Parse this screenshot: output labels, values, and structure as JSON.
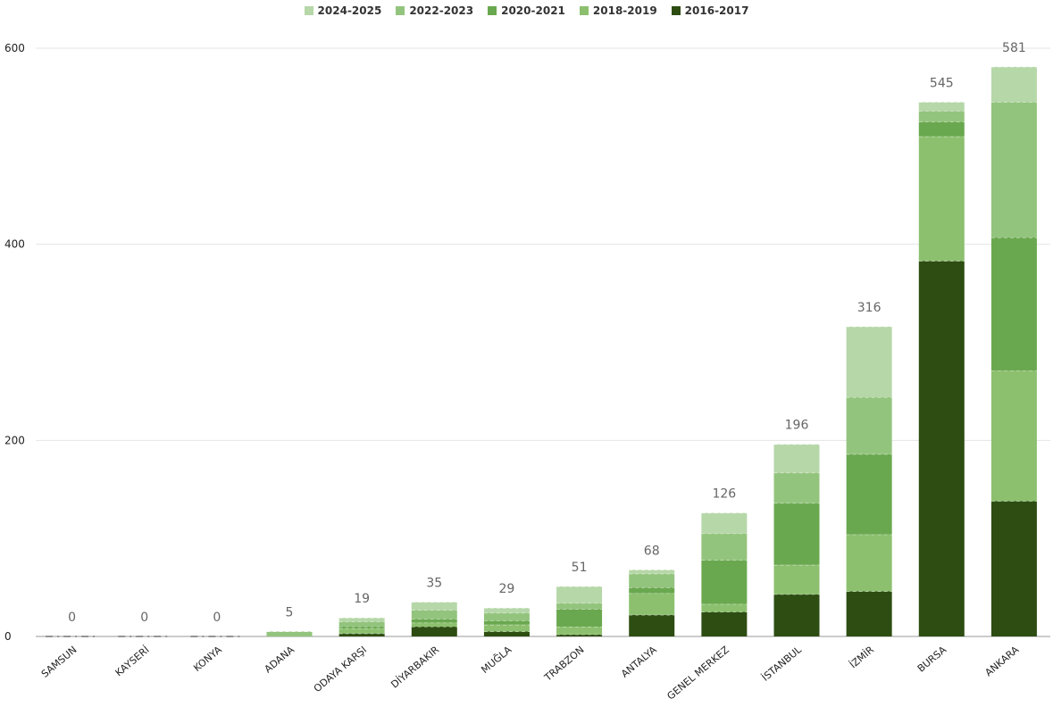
{
  "chart_data": {
    "type": "bar",
    "stacked": true,
    "title": "",
    "xlabel": "",
    "ylabel": "",
    "ylim": [
      0,
      600
    ],
    "yticks": [
      0,
      200,
      400,
      600
    ],
    "grid": true,
    "legend_position": "top-center",
    "categories": [
      "SAMSUN",
      "KAYSERİ",
      "KONYA",
      "ADANA",
      "ODAYA KARŞI",
      "DİYARBAKIR",
      "MUĞLA",
      "TRABZON",
      "ANTALYA",
      "GENEL MERKEZ",
      "İSTANBUL",
      "İZMİR",
      "BURSA",
      "ANKARA"
    ],
    "totals": [
      0,
      0,
      0,
      5,
      19,
      35,
      29,
      51,
      68,
      126,
      196,
      316,
      545,
      581
    ],
    "series": [
      {
        "name": "2016-2017",
        "color": "#2d4d12",
        "values": [
          0,
          0,
          0,
          0,
          3,
          10,
          5,
          2,
          22,
          25,
          43,
          46,
          383,
          138
        ]
      },
      {
        "name": "2018-2019",
        "color": "#8cc06e",
        "values": [
          0,
          0,
          0,
          0,
          5,
          4,
          7,
          8,
          22,
          8,
          30,
          58,
          127,
          133
        ]
      },
      {
        "name": "2020-2021",
        "color": "#6aa84f",
        "values": [
          0,
          0,
          0,
          0,
          2,
          4,
          4,
          18,
          6,
          45,
          63,
          82,
          15,
          136
        ]
      },
      {
        "name": "2022-2023",
        "color": "#93c47d",
        "values": [
          0,
          0,
          0,
          5,
          5,
          9,
          8,
          6,
          14,
          27,
          31,
          58,
          11,
          138
        ]
      },
      {
        "name": "2024-2025",
        "color": "#b6d7a8",
        "values": [
          0,
          0,
          0,
          0,
          4,
          8,
          5,
          17,
          4,
          21,
          29,
          72,
          9,
          36
        ]
      }
    ]
  }
}
